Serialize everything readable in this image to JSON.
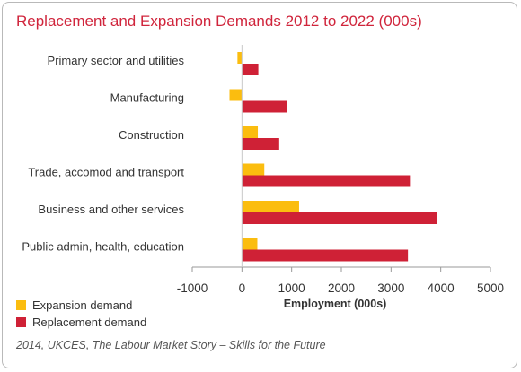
{
  "chart_data": {
    "type": "bar",
    "orientation": "horizontal",
    "title": "Replacement and Expansion Demands 2012 to 2022 (000s)",
    "xlabel": "Employment (000s)",
    "ylabel": "",
    "categories": [
      "Primary sector and utilities",
      "Manufacturing",
      "Construction",
      "Trade, accomod and transport",
      "Business and other services",
      "Public admin, health, education"
    ],
    "series": [
      {
        "name": "Expansion demand",
        "color": "#fbbd0f",
        "values": [
          -90,
          -250,
          320,
          450,
          1150,
          310
        ]
      },
      {
        "name": "Replacement demand",
        "color": "#cf2136",
        "values": [
          330,
          910,
          750,
          3380,
          3920,
          3340
        ]
      }
    ],
    "xlim": [
      -1000,
      5000
    ],
    "xticks": [
      -1000,
      0,
      1000,
      2000,
      3000,
      4000,
      5000
    ],
    "grid": false,
    "legend_position": "bottom-left"
  },
  "footer": {
    "source": "2014, UKCES, The Labour Market Story – Skills for the Future"
  }
}
